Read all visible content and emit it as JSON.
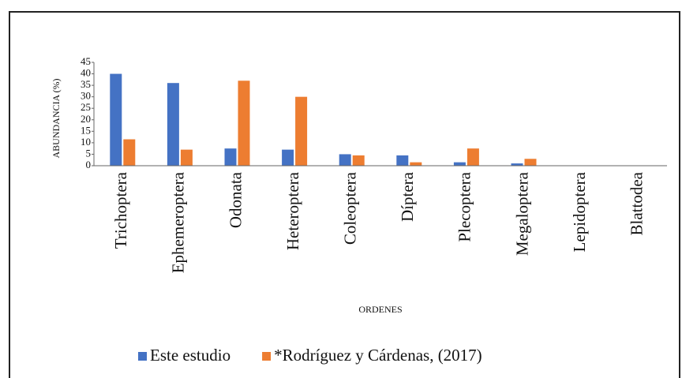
{
  "chart_data": {
    "type": "bar",
    "y_label": "ABUNDANCIA (%)",
    "x_label": "ORDENES",
    "categories": [
      "Trichoptera",
      "Ephemeroptera",
      "Odonata",
      "Heteroptera",
      "Coleoptera",
      "Díptera",
      "Plecoptera",
      "Megaloptera",
      "Lepidoptera",
      "Blattodea"
    ],
    "series": [
      {
        "name": "Este estudio",
        "color": "#4472c4",
        "values": [
          40,
          36,
          7.5,
          7,
          5,
          4.5,
          1.5,
          1,
          0,
          0
        ]
      },
      {
        "name": "*Rodríguez y Cárdenas, (2017)",
        "color": "#ed7d31",
        "values": [
          11.5,
          7,
          37,
          30,
          4.5,
          1.5,
          7.5,
          3,
          0,
          0
        ]
      }
    ],
    "ylim": [
      0,
      45
    ],
    "yticks": [
      0,
      5,
      10,
      15,
      20,
      25,
      30,
      35,
      40,
      45
    ],
    "legend": "bottom"
  }
}
